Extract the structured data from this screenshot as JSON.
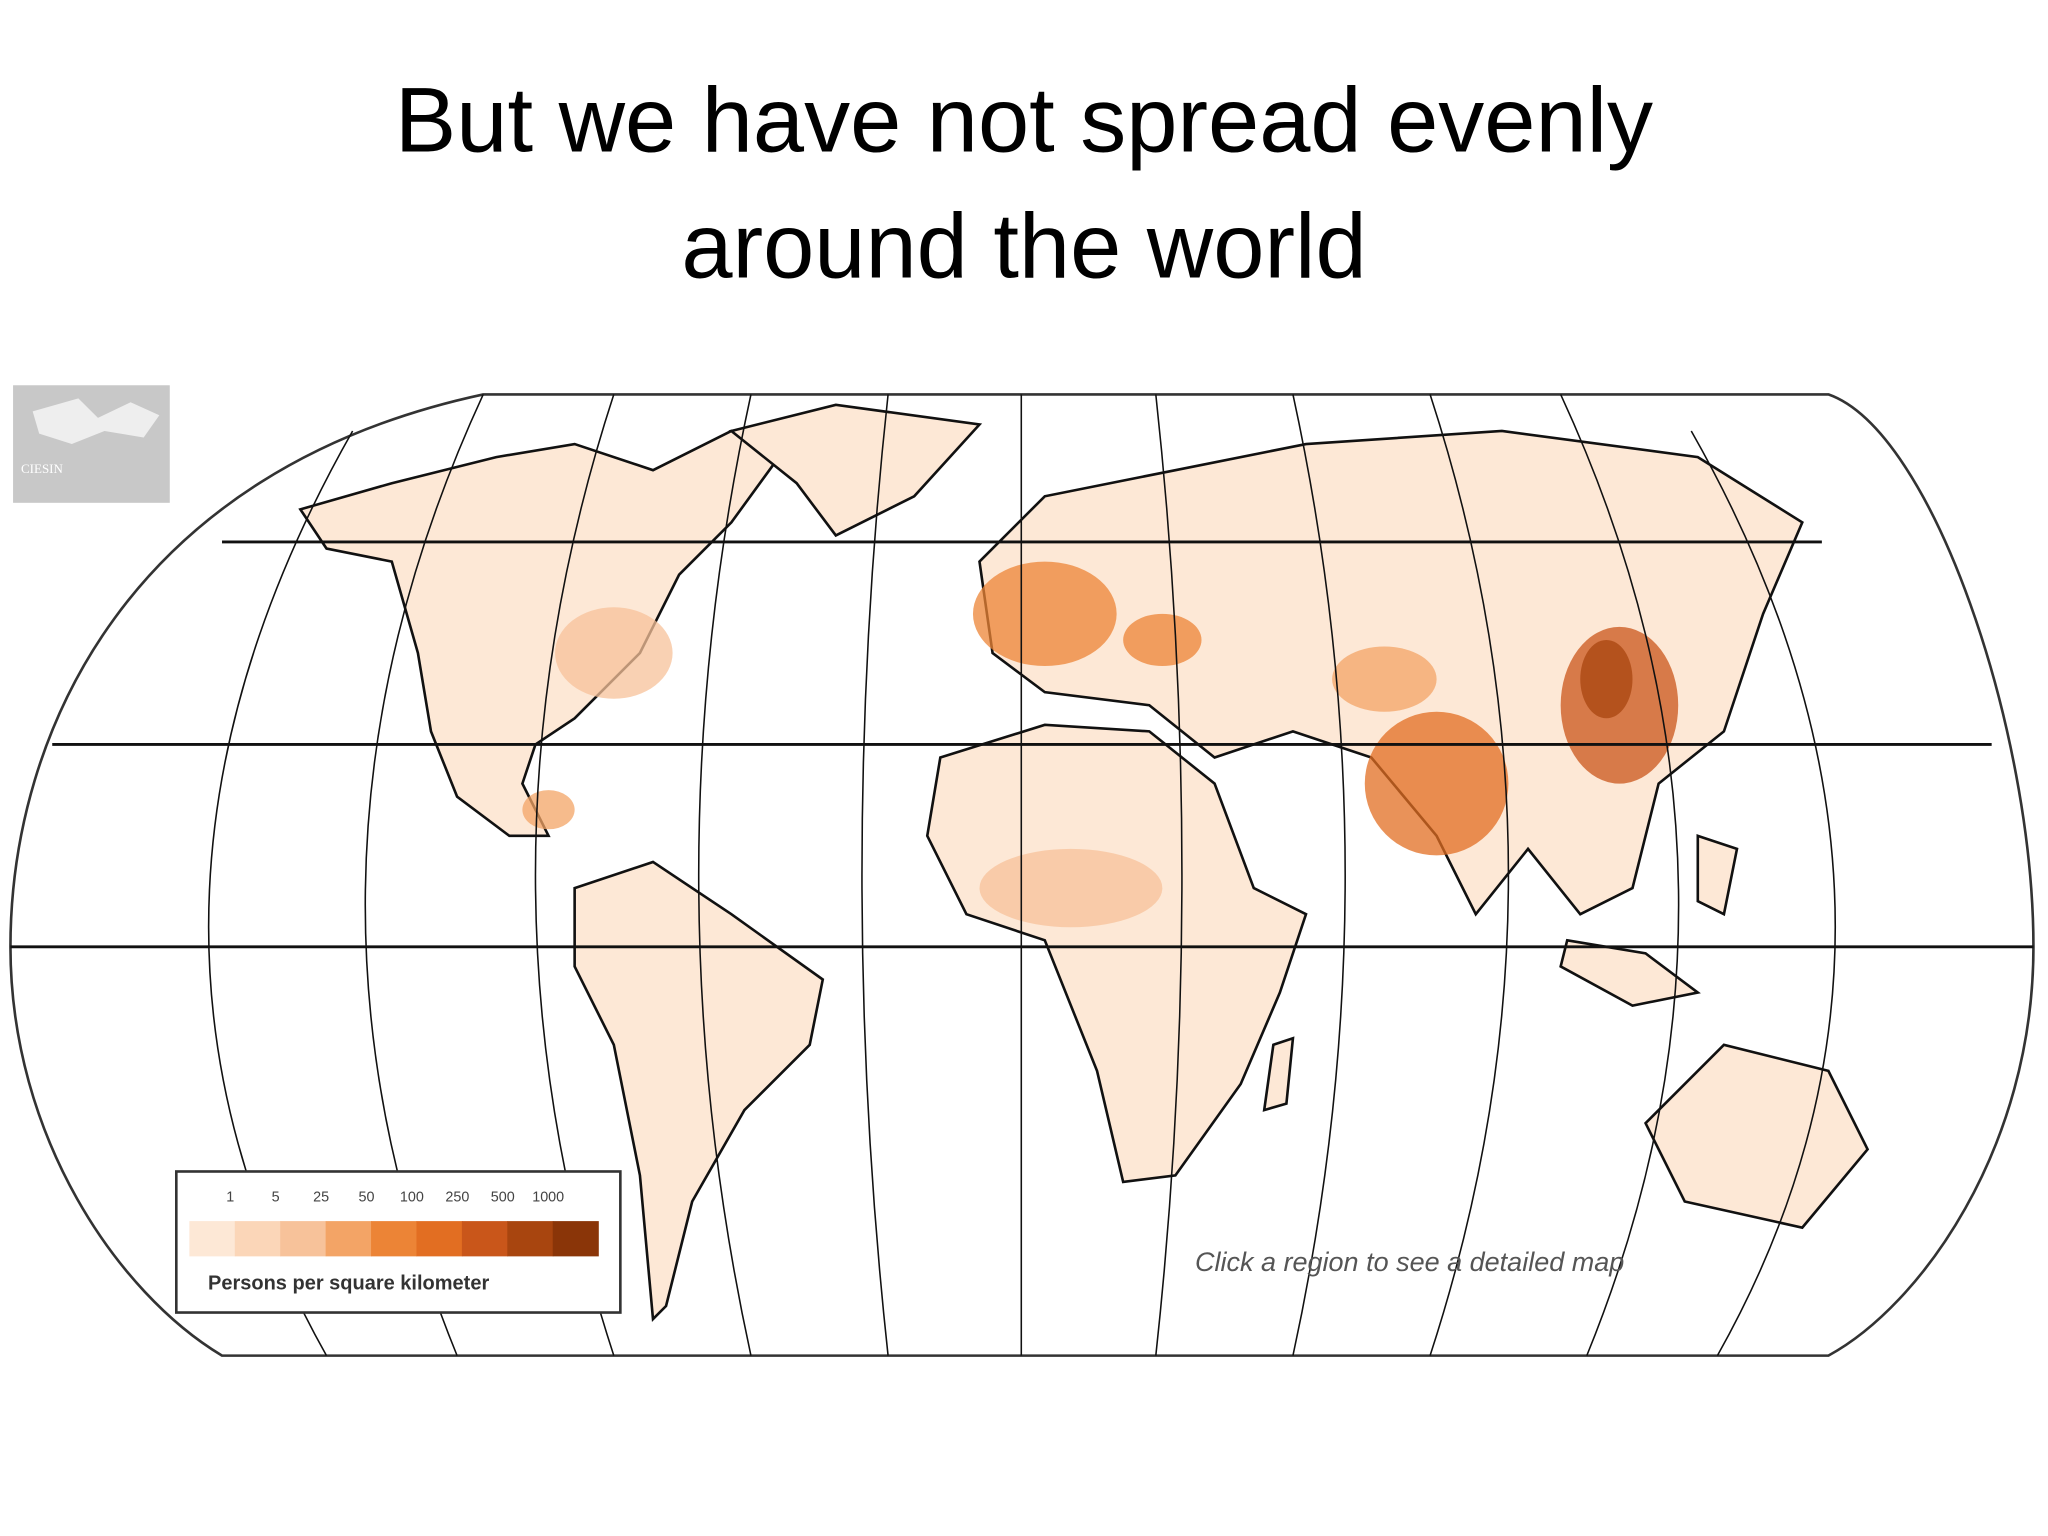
{
  "title_lines": [
    "But we have not spread evenly",
    "around the world"
  ],
  "map": {
    "logo": "CIESIN",
    "legend": {
      "ticks": [
        1,
        5,
        25,
        50,
        100,
        250,
        500,
        1000
      ],
      "colors": [
        "#fde8d6",
        "#fbd6b8",
        "#f7c29a",
        "#f3a466",
        "#ec8436",
        "#e26e22",
        "#c9561a",
        "#a8450f",
        "#8a3508"
      ],
      "label": "Persons per square kilometer"
    },
    "note": "Click a region to see a detailed map"
  }
}
